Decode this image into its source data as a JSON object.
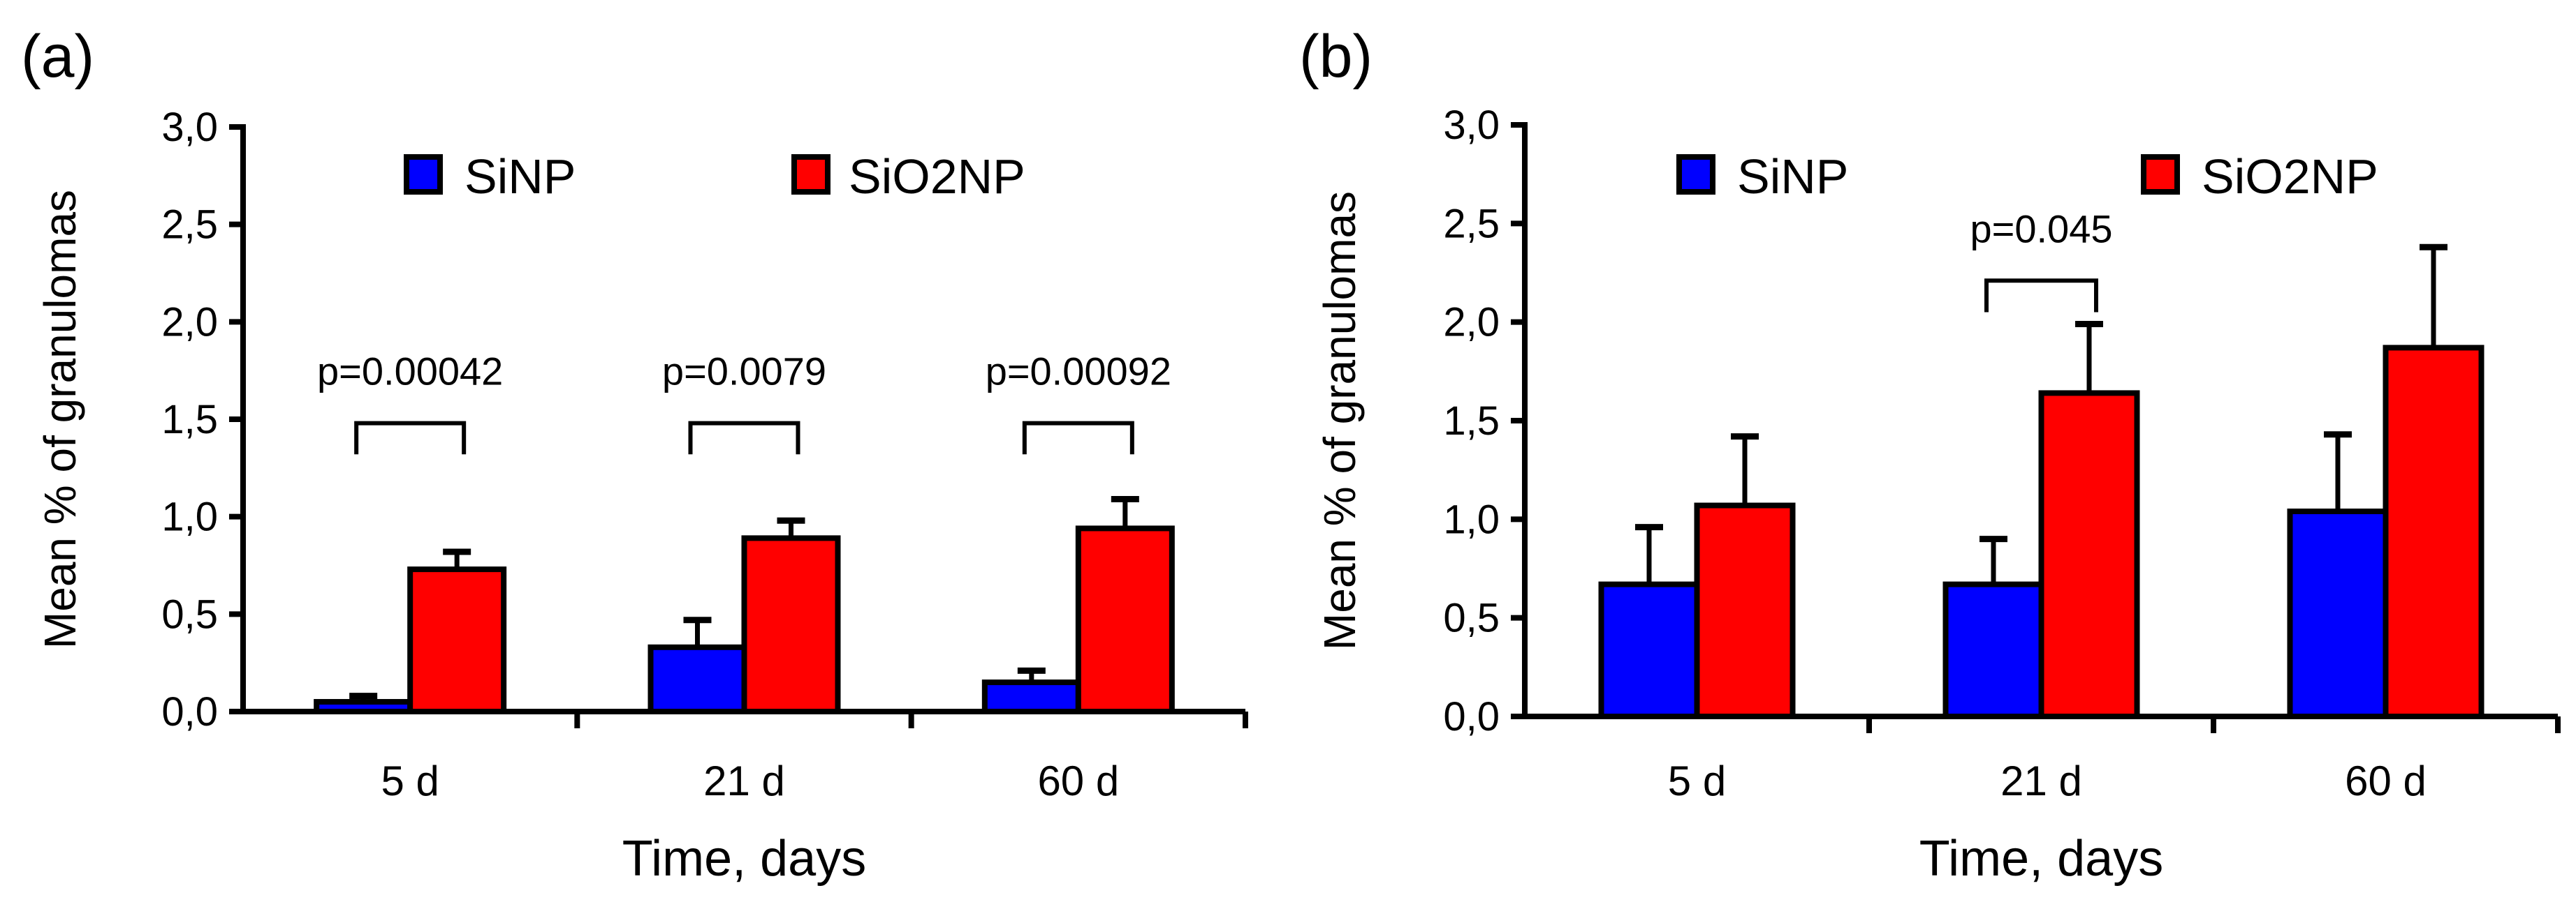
{
  "colors": {
    "SiNP": "#0000ff",
    "SiO2NP": "#ff0000",
    "axis": "#000000"
  },
  "chart_data": [
    {
      "panel_label": "(a)",
      "type": "bar",
      "categories": [
        "5 d",
        "21 d",
        "60 d"
      ],
      "xlabel": "Time, days",
      "ylabel": "Mean % of granulomas",
      "ylim": [
        0,
        3.0
      ],
      "yticks": [
        "0,0",
        "0,5",
        "1,0",
        "1,5",
        "2,0",
        "2,5",
        "3,0"
      ],
      "legend": [
        "SiNP",
        "SiO2NP"
      ],
      "legend_position": "top",
      "series": [
        {
          "name": "SiNP",
          "values": [
            0.05,
            0.33,
            0.15
          ],
          "errors": [
            0.03,
            0.14,
            0.06
          ]
        },
        {
          "name": "SiO2NP",
          "values": [
            0.73,
            0.89,
            0.94
          ],
          "errors": [
            0.09,
            0.09,
            0.15
          ]
        }
      ],
      "annotations": [
        {
          "category": "5 d",
          "text": "p=0.00042",
          "level": 1.48
        },
        {
          "category": "21 d",
          "text": "p=0.0079",
          "level": 1.48
        },
        {
          "category": "60 d",
          "text": "p=0.00092",
          "level": 1.48
        }
      ]
    },
    {
      "panel_label": "(b)",
      "type": "bar",
      "categories": [
        "5 d",
        "21 d",
        "60 d"
      ],
      "xlabel": "Time, days",
      "ylabel": "Mean % of granulomas",
      "ylim": [
        0,
        3.0
      ],
      "yticks": [
        "0,0",
        "0,5",
        "1,0",
        "1,5",
        "2,0",
        "2,5",
        "3,0"
      ],
      "legend": [
        "SiNP",
        "SiO2NP"
      ],
      "legend_position": "top",
      "series": [
        {
          "name": "SiNP",
          "values": [
            0.67,
            0.67,
            1.04
          ],
          "errors": [
            0.29,
            0.23,
            0.39
          ]
        },
        {
          "name": "SiO2NP",
          "values": [
            1.07,
            1.64,
            1.87
          ],
          "errors": [
            0.35,
            0.35,
            0.51
          ]
        }
      ],
      "annotations": [
        {
          "category": "21 d",
          "text": "p=0.045",
          "level": 2.21
        }
      ]
    }
  ]
}
